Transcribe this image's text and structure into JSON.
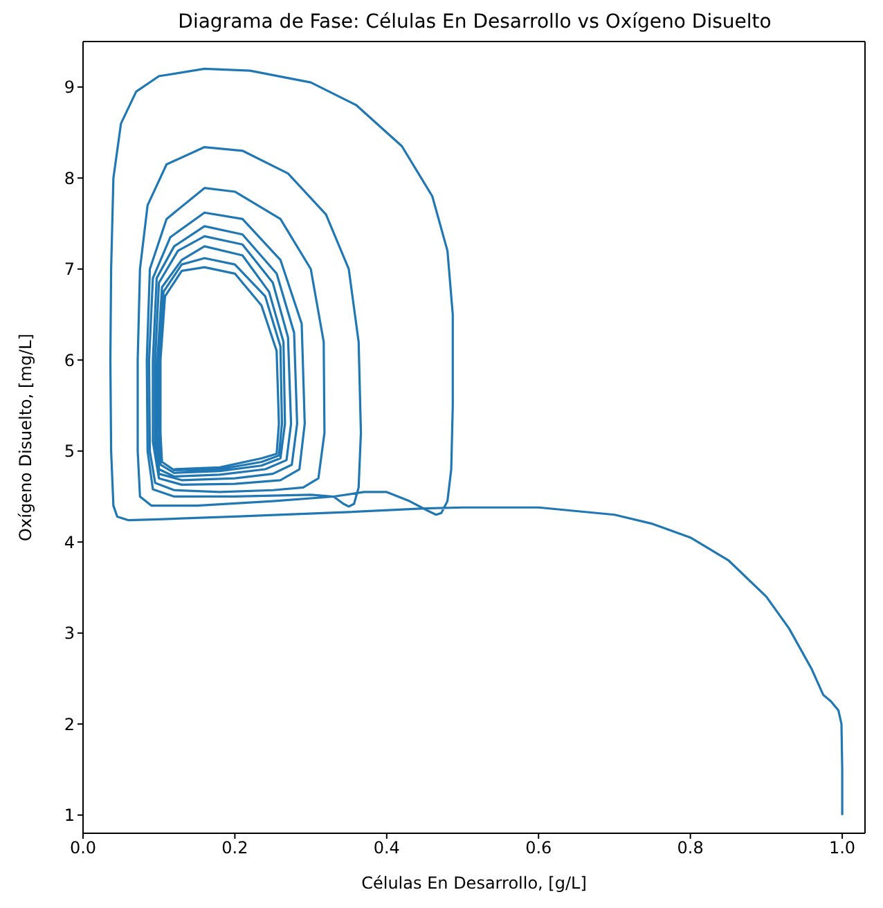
{
  "chart_data": {
    "type": "line",
    "title": "Diagrama de Fase: Células En Desarrollo vs Oxígeno Disuelto",
    "xlabel": "Células En Desarrollo, [g/L]",
    "ylabel": "Oxígeno Disuelto, [mg/L]",
    "xlim": [
      0,
      1.03
    ],
    "ylim": [
      0.8,
      9.5
    ],
    "xticks": [
      {
        "value": 0,
        "label": "0.0"
      },
      {
        "value": 0.2,
        "label": "0.2"
      },
      {
        "value": 0.4,
        "label": "0.4"
      },
      {
        "value": 0.6,
        "label": "0.6"
      },
      {
        "value": 0.8,
        "label": "0.8"
      },
      {
        "value": 1,
        "label": "1.0"
      }
    ],
    "yticks": [
      1,
      2,
      3,
      4,
      5,
      6,
      7,
      8,
      9
    ],
    "grid": false,
    "legend": false,
    "marker": "none",
    "line_style": "solid",
    "series": [
      {
        "color": "#1f77b4",
        "x": [
          1.0,
          1.0,
          0.999,
          0.995,
          0.985,
          0.975,
          0.96,
          0.93,
          0.9,
          0.85,
          0.8,
          0.75,
          0.7,
          0.6,
          0.5,
          0.45,
          0.35,
          0.2,
          0.1,
          0.06,
          0.045,
          0.04,
          0.037,
          0.036,
          0.037,
          0.04,
          0.05,
          0.07,
          0.1,
          0.16,
          0.22,
          0.3,
          0.36,
          0.42,
          0.46,
          0.48,
          0.487,
          0.487,
          0.485,
          0.48,
          0.472,
          0.465,
          0.455,
          0.43,
          0.4,
          0.37,
          0.33,
          0.25,
          0.15,
          0.09,
          0.075,
          0.072,
          0.072,
          0.075,
          0.085,
          0.11,
          0.16,
          0.21,
          0.27,
          0.32,
          0.35,
          0.363,
          0.366,
          0.363,
          0.357,
          0.35,
          0.343,
          0.33,
          0.3,
          0.2,
          0.12,
          0.092,
          0.085,
          0.084,
          0.088,
          0.11,
          0.16,
          0.2,
          0.26,
          0.3,
          0.317,
          0.318,
          0.31,
          0.29,
          0.25,
          0.18,
          0.12,
          0.095,
          0.088,
          0.087,
          0.092,
          0.115,
          0.16,
          0.21,
          0.26,
          0.288,
          0.292,
          0.285,
          0.26,
          0.2,
          0.13,
          0.1,
          0.092,
          0.092,
          0.097,
          0.12,
          0.16,
          0.21,
          0.255,
          0.278,
          0.282,
          0.275,
          0.25,
          0.2,
          0.13,
          0.1,
          0.095,
          0.095,
          0.1,
          0.125,
          0.16,
          0.21,
          0.25,
          0.27,
          0.274,
          0.268,
          0.24,
          0.18,
          0.12,
          0.1,
          0.097,
          0.098,
          0.104,
          0.13,
          0.16,
          0.21,
          0.245,
          0.264,
          0.266,
          0.26,
          0.235,
          0.18,
          0.12,
          0.102,
          0.1,
          0.1,
          0.106,
          0.13,
          0.16,
          0.2,
          0.24,
          0.26,
          0.262,
          0.258,
          0.235,
          0.18,
          0.12,
          0.104,
          0.102,
          0.102,
          0.108,
          0.13,
          0.16,
          0.2,
          0.235,
          0.255,
          0.258,
          0.255,
          0.235,
          0.18,
          0.12
        ],
        "values": [
          1.0,
          1.5,
          2.0,
          2.15,
          2.25,
          2.32,
          2.6,
          3.05,
          3.4,
          3.8,
          4.05,
          4.2,
          4.3,
          4.38,
          4.38,
          4.37,
          4.33,
          4.28,
          4.25,
          4.24,
          4.28,
          4.4,
          5,
          6,
          7,
          8,
          8.6,
          8.95,
          9.12,
          9.2,
          9.18,
          9.05,
          8.8,
          8.35,
          7.8,
          7.2,
          6.5,
          5.5,
          4.8,
          4.45,
          4.32,
          4.3,
          4.34,
          4.45,
          4.55,
          4.55,
          4.5,
          4.45,
          4.4,
          4.4,
          4.5,
          5,
          6,
          7,
          7.7,
          8.15,
          8.34,
          8.3,
          8.05,
          7.6,
          7,
          6.2,
          5.2,
          4.6,
          4.42,
          4.39,
          4.42,
          4.5,
          4.52,
          4.5,
          4.5,
          4.58,
          5,
          6,
          7,
          7.55,
          7.89,
          7.85,
          7.55,
          7,
          6.2,
          5.2,
          4.7,
          4.6,
          4.57,
          4.55,
          4.57,
          4.65,
          5,
          6,
          6.9,
          7.35,
          7.62,
          7.55,
          7.1,
          6.4,
          5.3,
          4.8,
          4.68,
          4.64,
          4.63,
          4.7,
          5.1,
          6,
          6.9,
          7.25,
          7.47,
          7.38,
          6.95,
          6.3,
          5.3,
          4.85,
          4.75,
          4.7,
          4.68,
          4.75,
          5.1,
          6,
          6.85,
          7.2,
          7.36,
          7.27,
          6.85,
          6.25,
          5.3,
          4.9,
          4.8,
          4.74,
          4.72,
          4.8,
          5.2,
          6,
          6.8,
          7.1,
          7.25,
          7.15,
          6.75,
          6.2,
          5.3,
          4.92,
          4.84,
          4.78,
          4.76,
          4.85,
          5.2,
          6,
          6.75,
          7.05,
          7.12,
          7.05,
          6.7,
          6.15,
          5.3,
          4.95,
          4.88,
          4.8,
          4.79,
          4.88,
          5.2,
          6,
          6.7,
          6.98,
          7.02,
          6.95,
          6.6,
          6.1,
          5.3,
          4.97,
          4.92,
          4.82,
          4.8
        ]
      }
    ]
  }
}
